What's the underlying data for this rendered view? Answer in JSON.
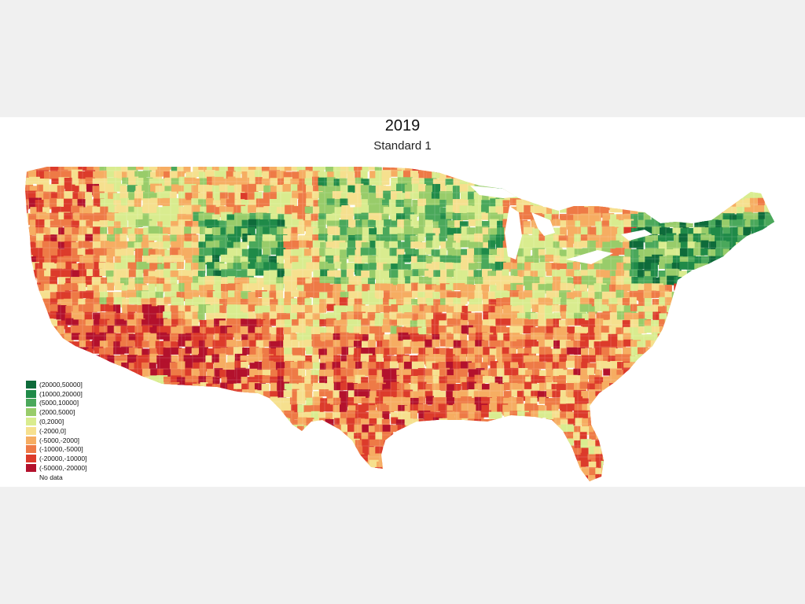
{
  "title": "2019",
  "subtitle": "Standard 1",
  "colors": {
    "page_bg": "#f0f0f0",
    "slide_bg": "#ffffff",
    "no_data": "#ffffff"
  },
  "legend": [
    {
      "label": "(20000,50000]",
      "color": "#0e6b3a"
    },
    {
      "label": "(10000,20000]",
      "color": "#1f8a48"
    },
    {
      "label": "(5000,10000]",
      "color": "#4aa85b"
    },
    {
      "label": "(2000,5000]",
      "color": "#98cc6a"
    },
    {
      "label": "(0,2000]",
      "color": "#d9ec8f"
    },
    {
      "label": "(-2000,0]",
      "color": "#f6e08e"
    },
    {
      "label": "(-5000,-2000]",
      "color": "#f6ad62"
    },
    {
      "label": "(-10000,-5000]",
      "color": "#ee7a46"
    },
    {
      "label": "(-20000,-10000]",
      "color": "#dc3b2b"
    },
    {
      "label": "(-50000,-20000]",
      "color": "#b3112c"
    },
    {
      "label": "No data",
      "color": ""
    }
  ]
}
